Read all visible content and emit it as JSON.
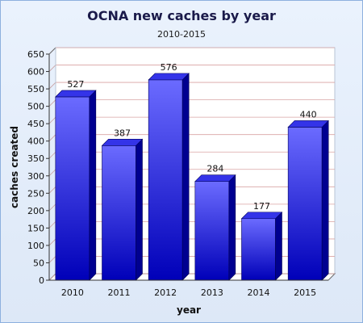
{
  "colors": {
    "bar_front_top": "#6b6bff",
    "bar_front_bottom": "#0000b8",
    "bar_side": "#000090",
    "bar_top": "#3434e8",
    "background": "#e4edfa",
    "border": "#8db0de"
  },
  "chart_data": {
    "type": "bar",
    "title": "OCNA new caches by year",
    "subtitle": "2010-2015",
    "xlabel": "year",
    "ylabel": "caches created",
    "categories": [
      "2010",
      "2011",
      "2012",
      "2013",
      "2014",
      "2015"
    ],
    "values": [
      527,
      387,
      576,
      284,
      177,
      440
    ],
    "ylim": [
      0,
      650
    ],
    "yticks": [
      "0",
      "50",
      "100",
      "150",
      "200",
      "250",
      "300",
      "350",
      "400",
      "450",
      "500",
      "550",
      "600",
      "650"
    ],
    "grid": true,
    "legend": "none",
    "style": "3d"
  }
}
